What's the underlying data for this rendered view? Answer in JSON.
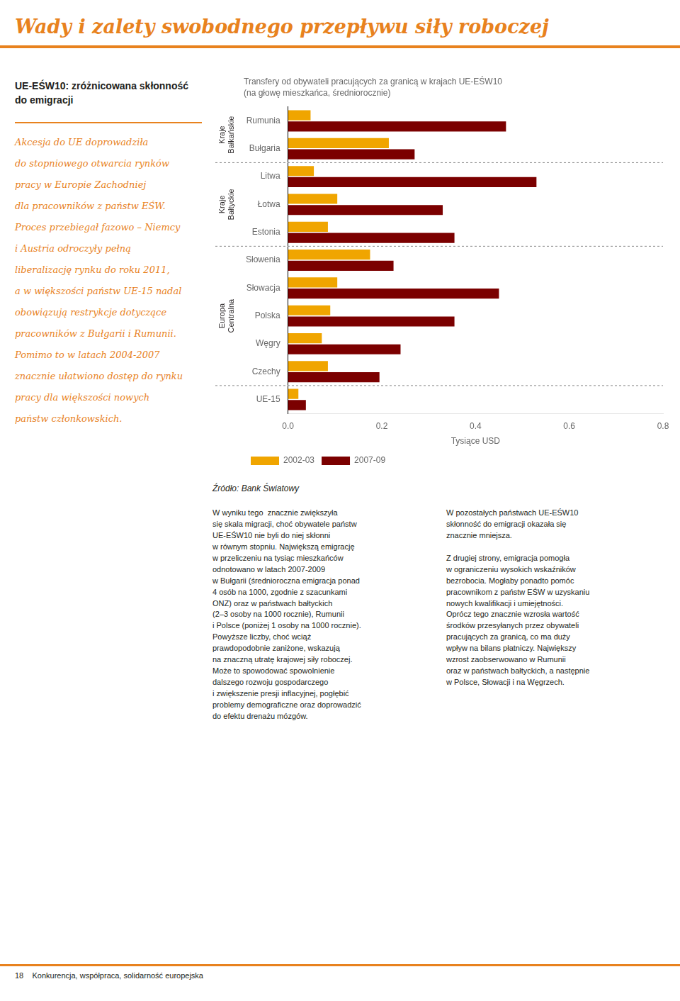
{
  "page_title": "Wady i zalety swobodnego przepływu siły roboczej",
  "heading": "UE-EŚW10: zróżnicowana skłonność\ndo emigracji",
  "body_text": [
    "Akcesja do UE doprowadziła",
    "do stopniowego otwarcia rynków",
    "pracy w Europie Zachodniej",
    "dla pracowników z państw EŚW.",
    "Proces przebiegał fazowo – Niemcy",
    "i Austria odroczyły pełną",
    "liberalizację rynku do roku 2011,",
    "a w większości państw UE-15 nadal",
    "obowiązują restrykcje dotyczące",
    "pracowników z Bułgarii i Rumunii.",
    "Pomimo to w latach 2004-2007",
    "znacznie ułatwiono dostęp do rynku",
    "pracy dla większości nowych",
    "państw członkowskich."
  ],
  "source": "Źródło: Bank Światowy",
  "text_columns": [
    "W wyniku tego  znacznie zwiększyła\nsię skala migracji, choć obywatele państw\nUE-EŚW10 nie byli do niej skłonni\nw równym stopniu. Największą emigrację\nw przeliczeniu na tysiąc mieszkańców\nodnotowano w latach 2007-2009\nw Bułgarii (średnioroczna emigracja ponad\n4 osób na 1000, zgodnie z szacunkami\nONZ) oraz w państwach bałtyckich\n(2–3 osoby na 1000 rocznie), Rumunii\ni Polsce (poniżej 1 osoby na 1000 rocznie).\nPowyższe liczby, choć wciąż\nprawdopodobnie zaniżone, wskazują\nna znaczną utratę krajowej siły roboczej.\nMoże to spowodować spowolnienie\ndalszego rozwoju gospodarczego\ni zwiększenie presji inflacyjnej, pogłębić\nproblemy demograficzne oraz doprowadzić\ndo efektu drenażu mózgów.",
    "W pozostałych państwach UE-EŚW10\nskłonność do emigracji okazała się\nznacznie mniejsza.\n\nZ drugiej strony, emigracja pomogła\nw ograniczeniu wysokich wskaźników\nbezrobocia. Mogłaby ponadto pomóc\npracownikom z państw EŚW w uzyskaniu\nnowych kwalifikacji i umiejętności.\nOprócz tego znacznie wzrosła wartość\nśrodków przesyłanych przez obywateli\npracujących za granicą, co ma duży\nwpływ na bilans płatniczy. Największy\nwzrost zaobserwowano w Rumunii\noraz w państwach bałtyckich, a następnie\nw Polsce, Słowacji i na Węgrzech."
  ],
  "footer": "18    Konkurencja, współpraca, solidarność europejska",
  "chart_data": {
    "type": "bar",
    "orientation": "horizontal",
    "title": "Transfery od obywateli pracujących za granicą w krajach UE-EŚW10",
    "subtitle": "(na głowę mieszkańca, średniorocznie)",
    "categories": [
      "Rumunia",
      "Bułgaria",
      "Litwa",
      "Łotwa",
      "Estonia",
      "Słowenia",
      "Słowacja",
      "Polska",
      "Węgry",
      "Czechy",
      "UE-15"
    ],
    "series": [
      {
        "name": "2002-03",
        "color": "#F0A500",
        "values": [
          0.048,
          0.215,
          0.055,
          0.105,
          0.085,
          0.175,
          0.105,
          0.09,
          0.072,
          0.085,
          0.022
        ]
      },
      {
        "name": "2007-09",
        "color": "#7B0000",
        "values": [
          0.465,
          0.27,
          0.53,
          0.33,
          0.355,
          0.225,
          0.45,
          0.355,
          0.24,
          0.195,
          0.038
        ]
      }
    ],
    "xlabel": "Tysiące USD",
    "xlim": [
      0,
      0.8
    ],
    "xticks": [
      {
        "value": 0,
        "label": "0.0"
      },
      0.2,
      0.4,
      0.6,
      0.8
    ],
    "grid": false,
    "legend": "bottom",
    "annotations": [
      {
        "text": "Kraje\nBałkańskie",
        "categories": [
          "Rumunia",
          "Bułgaria"
        ]
      },
      {
        "text": "Kraje\nBałtyckie",
        "categories": [
          "Litwa",
          "Łotwa",
          "Estonia"
        ]
      },
      {
        "text": "Europa\nCentralna",
        "categories": [
          "Słowenia",
          "Słowacja",
          "Polska",
          "Węgry",
          "Czechy"
        ]
      }
    ]
  }
}
